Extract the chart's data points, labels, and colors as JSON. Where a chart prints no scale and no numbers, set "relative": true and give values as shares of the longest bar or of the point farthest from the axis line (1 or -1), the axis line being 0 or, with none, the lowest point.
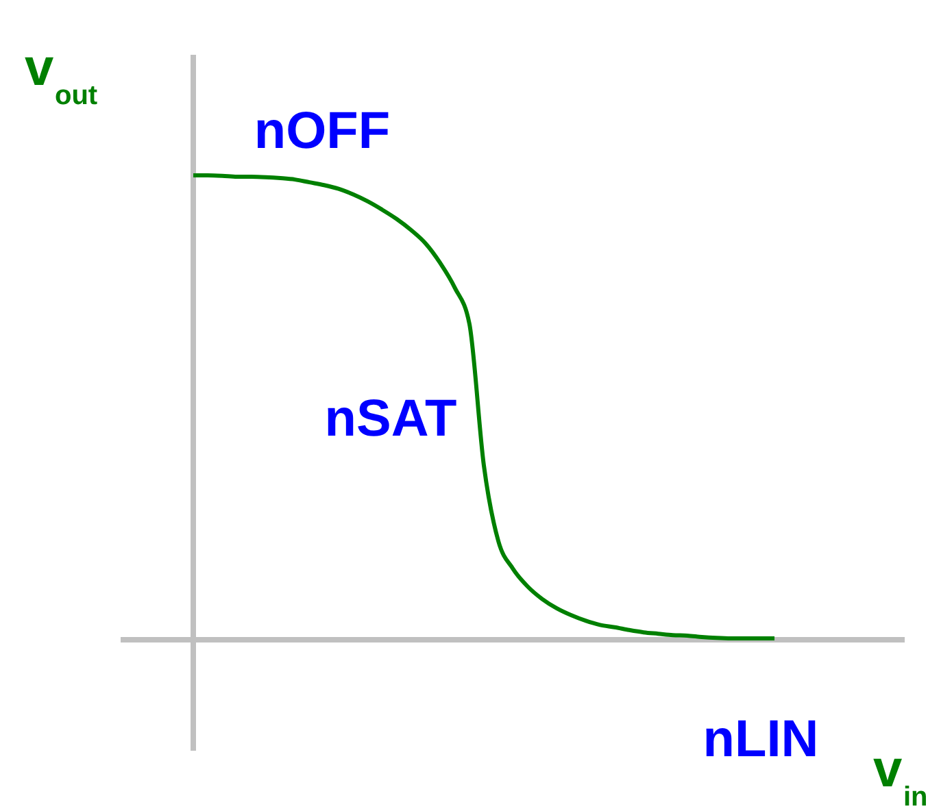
{
  "chart_data": {
    "type": "line",
    "relative": true,
    "xlabel": "v$_{in}$",
    "ylabel": "v$_{out}$",
    "categories": [
      null,
      null,
      null,
      null,
      null,
      null,
      null,
      null,
      null,
      null,
      null,
      null,
      null,
      null,
      null,
      null,
      null,
      null,
      null,
      null,
      null,
      null,
      null,
      null,
      null,
      null,
      null,
      null,
      null,
      null,
      null,
      null,
      null,
      null,
      null,
      null,
      null,
      null,
      null,
      null,
      null
    ],
    "series": [
      {
        "color": "#008000",
        "values": [
          1.0,
          1.0,
          0.999,
          0.997,
          0.997,
          0.996,
          0.994,
          0.991,
          0.985,
          0.979,
          0.971,
          0.959,
          0.944,
          0.926,
          0.906,
          0.882,
          0.853,
          0.811,
          0.758,
          0.681,
          0.375,
          0.212,
          0.153,
          0.115,
          0.088,
          0.068,
          0.053,
          0.041,
          0.032,
          0.027,
          0.021,
          0.016,
          0.013,
          0.01,
          0.009,
          0.006,
          0.004,
          0.003,
          0.003,
          0.003,
          0.003
        ]
      }
    ],
    "annotations": [
      "nOFF",
      "nSAT",
      "nLIN"
    ],
    "marker": "none",
    "line_style": "solid"
  }
}
